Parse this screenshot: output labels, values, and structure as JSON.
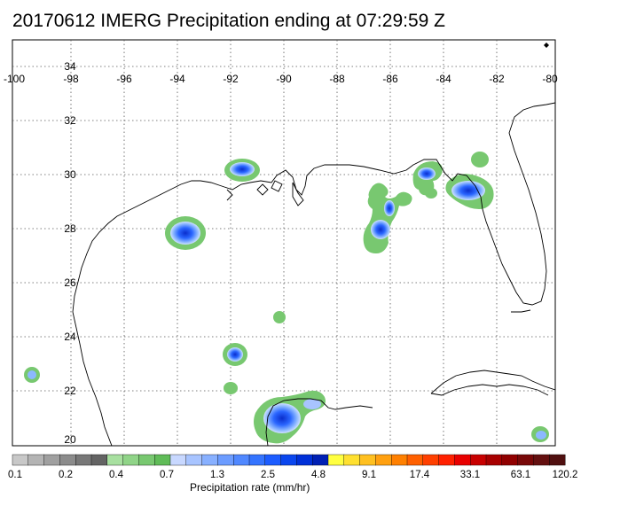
{
  "title": "20170612 IMERG Precipitation ending at 07:29:59 Z",
  "map": {
    "lon_ticks": [
      "-100",
      "-98",
      "-96",
      "-94",
      "-92",
      "-90",
      "-88",
      "-86",
      "-84",
      "-82",
      "-80"
    ],
    "lat_ticks": [
      "34",
      "32",
      "30",
      "28",
      "26",
      "24",
      "22",
      "20"
    ]
  },
  "colorbar": {
    "title": "Precipitation rate (mm/hr)",
    "labels": [
      "0.1",
      "0.2",
      "0.4",
      "0.7",
      "1.3",
      "2.5",
      "4.8",
      "9.1",
      "17.4",
      "33.1",
      "63.1",
      "120.2"
    ],
    "colors": [
      "#c8c8c8",
      "#b4b4b4",
      "#a0a0a0",
      "#8c8c8c",
      "#787878",
      "#646464",
      "#a8e0a0",
      "#90d488",
      "#78c870",
      "#60bc58",
      "#c8d8ff",
      "#a8c4ff",
      "#88b0ff",
      "#6c9cff",
      "#5088ff",
      "#3474ff",
      "#1c5cff",
      "#0a46ee",
      "#0030d8",
      "#0020b4",
      "#ffff40",
      "#ffe030",
      "#ffc020",
      "#ffa010",
      "#ff8000",
      "#ff6000",
      "#ff4000",
      "#ff2000",
      "#e80000",
      "#c80000",
      "#a80000",
      "#900000",
      "#780808",
      "#641010",
      "#501010"
    ]
  }
}
